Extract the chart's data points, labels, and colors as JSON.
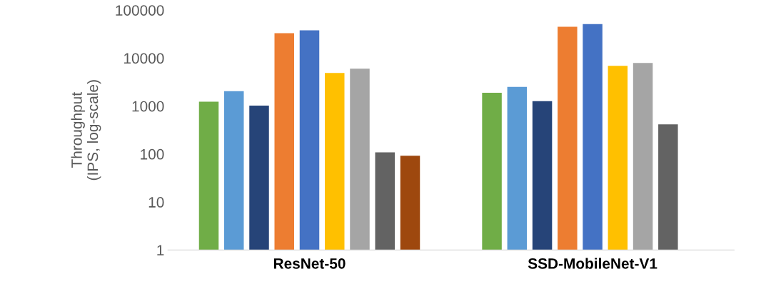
{
  "chart_data": {
    "type": "bar",
    "ylabel": "Throughput\n(IPS, log-scale)",
    "categories": [
      "ResNet-50",
      "SSD-MobileNet-V1"
    ],
    "log": "y",
    "ylim": [
      1,
      100000
    ],
    "yticks": [
      1,
      10,
      100,
      1000,
      10000,
      100000
    ],
    "grid": false,
    "legend": false,
    "series": [
      {
        "color": "#70ad47",
        "values": [
          1230,
          1900
        ]
      },
      {
        "color": "#5b9bd5",
        "values": [
          2050,
          2500
        ]
      },
      {
        "color": "#264478",
        "values": [
          1020,
          1260
        ]
      },
      {
        "color": "#ed7d31",
        "values": [
          33000,
          45000
        ]
      },
      {
        "color": "#4472c4",
        "values": [
          38000,
          51000
        ]
      },
      {
        "color": "#ffc000",
        "values": [
          4900,
          6900
        ]
      },
      {
        "color": "#a5a5a5",
        "values": [
          6000,
          7900
        ]
      },
      {
        "color": "#636363",
        "values": [
          107,
          415
        ]
      },
      {
        "color": "#9e480e",
        "values": [
          91,
          null
        ]
      }
    ]
  }
}
